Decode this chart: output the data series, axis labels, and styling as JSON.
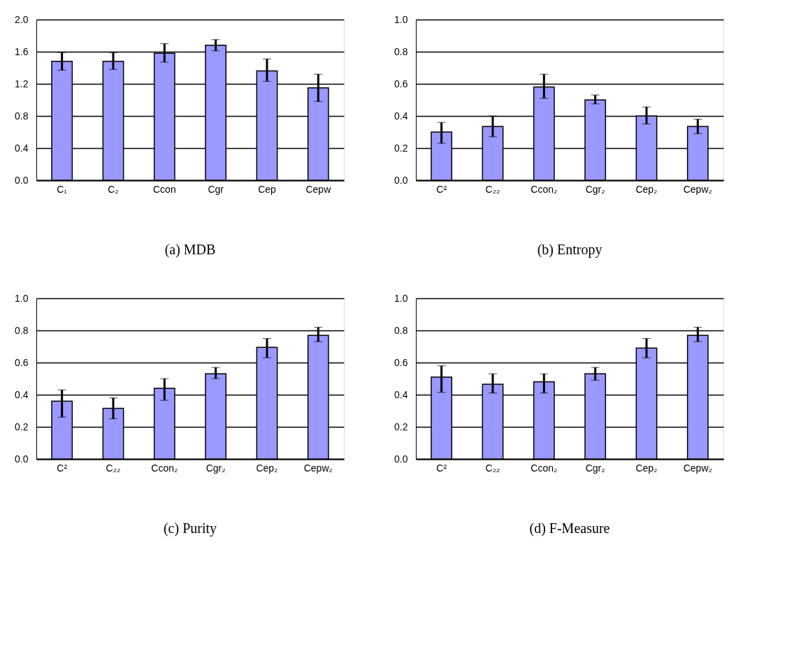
{
  "chart_data": [
    {
      "type": "bar",
      "title": "(a) MDB",
      "categories": [
        "C₁",
        "C₂",
        "Ccon",
        "Cgr",
        "Cep",
        "Cepw"
      ],
      "values": [
        1.48,
        1.48,
        1.58,
        1.68,
        1.36,
        1.15
      ],
      "errors": [
        [
          1.37,
          1.59
        ],
        [
          1.38,
          1.59
        ],
        [
          1.47,
          1.7
        ],
        [
          1.61,
          1.75
        ],
        [
          1.23,
          1.51
        ],
        [
          0.98,
          1.32
        ]
      ],
      "color": "#9999ff",
      "ylim": [
        0,
        2
      ],
      "yticks": [
        {
          "value": 0,
          "label": "0.0"
        },
        {
          "value": 0.4,
          "label": "0.4"
        },
        {
          "value": 0.8,
          "label": "0.8"
        },
        {
          "value": 1.2,
          "label": "1.2"
        },
        {
          "value": 1.6,
          "label": "1.6"
        },
        {
          "value": 2,
          "label": "2.0"
        }
      ],
      "grid": "y"
    },
    {
      "type": "bar",
      "title": "(b) Entropy",
      "categories": [
        "C²",
        "C₂₂",
        "Ccon₂",
        "Cgr₂",
        "Cep₂",
        "Cepw₂"
      ],
      "values": [
        0.3,
        0.335,
        0.58,
        0.5,
        0.4,
        0.335
      ],
      "errors": [
        [
          0.23,
          0.36
        ],
        [
          0.27,
          0.4
        ],
        [
          0.51,
          0.66
        ],
        [
          0.475,
          0.53
        ],
        [
          0.35,
          0.456
        ],
        [
          0.29,
          0.38
        ]
      ],
      "color": "#9999ff",
      "ylim": [
        0,
        1
      ],
      "yticks": [
        {
          "value": 0,
          "label": "0.0"
        },
        0.2,
        0.4,
        0.6,
        0.8,
        {
          "value": 1,
          "label": "1.0"
        }
      ],
      "grid": "y"
    },
    {
      "type": "bar",
      "title": "(c) Purity",
      "categories": [
        "C²",
        "C₂₂",
        "Ccon₂",
        "Cgr₂",
        "Cep₂",
        "Cepw₂"
      ],
      "values": [
        0.36,
        0.315,
        0.44,
        0.53,
        0.695,
        0.77
      ],
      "errors": [
        [
          0.26,
          0.43
        ],
        [
          0.25,
          0.38
        ],
        [
          0.365,
          0.5
        ],
        [
          0.5,
          0.57
        ],
        [
          0.63,
          0.75
        ],
        [
          0.73,
          0.82
        ]
      ],
      "color": "#9999ff",
      "ylim": [
        0,
        1
      ],
      "yticks": [
        {
          "value": 0,
          "label": "0.0"
        },
        0.2,
        0.4,
        0.6,
        0.8,
        {
          "value": 1,
          "label": "1.0"
        }
      ],
      "grid": "y"
    },
    {
      "type": "bar",
      "title": "(d) F-Measure",
      "categories": [
        "C²",
        "C₂₂",
        "Ccon₂",
        "Cgr₂",
        "Cep₂",
        "Cepw₂"
      ],
      "values": [
        0.51,
        0.465,
        0.48,
        0.53,
        0.69,
        0.77
      ],
      "errors": [
        [
          0.415,
          0.58
        ],
        [
          0.41,
          0.53
        ],
        [
          0.41,
          0.53
        ],
        [
          0.49,
          0.57
        ],
        [
          0.63,
          0.75
        ],
        [
          0.73,
          0.82
        ]
      ],
      "color": "#9999ff",
      "ylim": [
        0,
        1
      ],
      "yticks": [
        {
          "value": 0,
          "label": "0.0"
        },
        0.2,
        0.4,
        0.6,
        0.8,
        {
          "value": 1,
          "label": "1.0"
        }
      ],
      "grid": "y"
    }
  ]
}
